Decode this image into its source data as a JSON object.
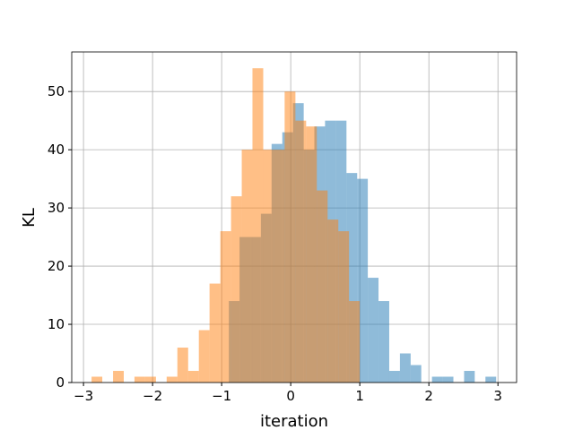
{
  "chart_data": {
    "type": "histogram",
    "xlabel": "iteration",
    "ylabel": "KL",
    "series": [
      {
        "color": "#1f77b4",
        "opacity": 0.5,
        "bins": [
          -0.896,
          -0.741,
          -0.586,
          -0.432,
          -0.277,
          -0.122,
          0.033,
          0.188,
          0.342,
          0.497,
          0.652,
          0.807,
          0.962,
          1.116,
          1.271,
          1.426,
          1.581,
          1.736,
          1.89,
          2.045,
          2.2,
          2.355,
          2.51,
          2.664,
          2.819,
          2.974
        ],
        "values": [
          14,
          25,
          25,
          29,
          41,
          43,
          48,
          40,
          44,
          45,
          45,
          36,
          35,
          18,
          14,
          2,
          5,
          3,
          0,
          1,
          1,
          0,
          2,
          0,
          1
        ]
      },
      {
        "color": "#ff7f0e",
        "opacity": 0.5,
        "bins": [
          -2.883,
          -2.728,
          -2.572,
          -2.417,
          -2.262,
          -2.107,
          -1.951,
          -1.796,
          -1.641,
          -1.485,
          -1.33,
          -1.175,
          -1.019,
          -0.864,
          -0.709,
          -0.554,
          -0.398,
          -0.243,
          -0.088,
          0.068,
          0.223,
          0.378,
          0.534,
          0.689,
          0.844,
          0.999
        ],
        "values": [
          1,
          0,
          2,
          0,
          1,
          1,
          0,
          1,
          6,
          2,
          9,
          17,
          26,
          32,
          40,
          54,
          40,
          40,
          50,
          45,
          44,
          33,
          28,
          26,
          14
        ]
      }
    ],
    "xlim": [
      -3.17,
      3.27
    ],
    "ylim": [
      0,
      56.8
    ],
    "xticks": [
      {
        "value": -3,
        "label": "−3"
      },
      {
        "value": -2,
        "label": "−2"
      },
      {
        "value": -1,
        "label": "−1"
      },
      0,
      1,
      2,
      3
    ],
    "yticks": [
      0,
      10,
      20,
      30,
      40,
      50
    ],
    "grid": true
  }
}
